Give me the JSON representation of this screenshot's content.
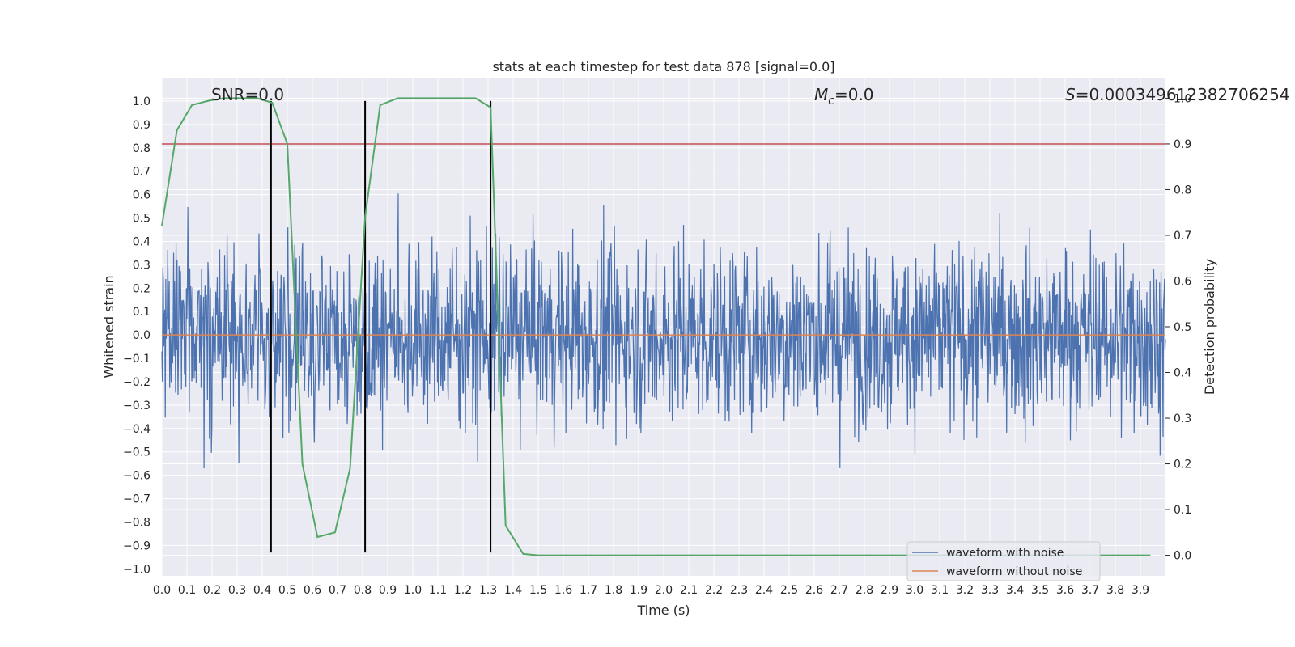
{
  "chart_data": {
    "type": "line",
    "title": "stats at each timestep for test data 878 [signal=0.0]",
    "xlabel": "Time (s)",
    "ylabel": "Whitened strain",
    "y2label": "Detection probability",
    "xlim": [
      0.0,
      4.0
    ],
    "ylim": [
      -1.03,
      1.1
    ],
    "y2lim": [
      -0.045,
      1.045
    ],
    "x_ticks": [
      "0.0",
      "0.1",
      "0.2",
      "0.3",
      "0.4",
      "0.5",
      "0.6",
      "0.7",
      "0.8",
      "0.9",
      "1.0",
      "1.1",
      "1.2",
      "1.3",
      "1.4",
      "1.5",
      "1.6",
      "1.7",
      "1.8",
      "1.9",
      "2.0",
      "2.1",
      "2.2",
      "2.3",
      "2.4",
      "2.5",
      "2.6",
      "2.7",
      "2.8",
      "2.9",
      "3.0",
      "3.1",
      "3.2",
      "3.3",
      "3.4",
      "3.5",
      "3.6",
      "3.7",
      "3.8",
      "3.9"
    ],
    "y_ticks": [
      "1.0",
      "0.9",
      "0.8",
      "0.7",
      "0.6",
      "0.5",
      "0.4",
      "0.3",
      "0.2",
      "0.1",
      "0.0",
      "−0.1",
      "−0.2",
      "−0.3",
      "−0.4",
      "−0.5",
      "−0.6",
      "−0.7",
      "−0.8",
      "−0.9",
      "−1.0"
    ],
    "y2_ticks": [
      "1.0",
      "0.9",
      "0.8",
      "0.7",
      "0.6",
      "0.5",
      "0.4",
      "0.3",
      "0.2",
      "0.1",
      "0.0"
    ],
    "annotations": {
      "snr": "SNR=0.0",
      "mc_symbol": "M",
      "mc_sub": "c",
      "mc_value": "=0.0",
      "s_symbol": "S",
      "s_value": "=0.000349612382706254"
    },
    "threshold": 0.9,
    "vertical_lines": [
      0.435,
      0.81,
      1.31
    ],
    "vertical_line_range": [
      -0.93,
      1.0
    ],
    "noise": {
      "amplitude_envelope": 0.85,
      "num_samples": 2048,
      "seed": 878
    },
    "probability_series": {
      "x": [
        0.0,
        0.06,
        0.12,
        0.19,
        0.25,
        0.31,
        0.38,
        0.44,
        0.5,
        0.56,
        0.62,
        0.69,
        0.75,
        0.81,
        0.87,
        0.94,
        1.0,
        1.06,
        1.12,
        1.19,
        1.25,
        1.31,
        1.37,
        1.44,
        1.5,
        1.56,
        1.62,
        3.94
      ],
      "y": [
        0.72,
        0.93,
        0.985,
        0.995,
        1.0,
        1.0,
        1.0,
        0.99,
        0.9,
        0.2,
        0.04,
        0.05,
        0.19,
        0.74,
        0.985,
        1.0,
        1.0,
        1.0,
        1.0,
        1.0,
        1.0,
        0.98,
        0.065,
        0.003,
        0.0,
        0.0,
        0.0,
        0.0
      ]
    },
    "legend": {
      "position": "lower-right",
      "items": [
        "waveform with noise",
        "waveform without noise"
      ]
    },
    "colors": {
      "noisy": "#4c72b0",
      "clean": "#dd8452",
      "probability": "#55a868",
      "threshold": "#c44e52",
      "vline": "#000000",
      "axes_bg": "#eaeaf2",
      "grid": "#ffffff"
    }
  }
}
